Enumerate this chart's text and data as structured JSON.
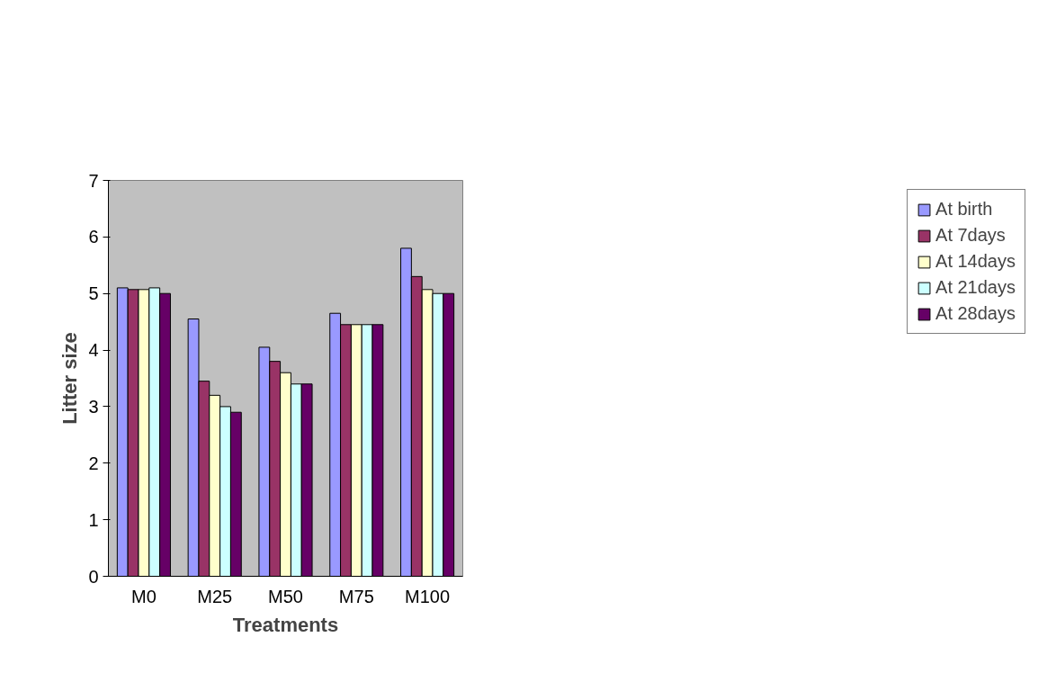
{
  "chart_data": {
    "type": "bar",
    "xlabel": "Treatments",
    "ylabel": "Litter size",
    "categories": [
      "M0",
      "M25",
      "M50",
      "M75",
      "M100"
    ],
    "series": [
      {
        "name": "At birth",
        "color": "#9999ff",
        "values": [
          5.1,
          4.55,
          4.05,
          4.65,
          5.8
        ]
      },
      {
        "name": "At 7days",
        "color": "#993366",
        "values": [
          5.07,
          3.45,
          3.8,
          4.45,
          5.3
        ]
      },
      {
        "name": "At 14days",
        "color": "#ffffcc",
        "values": [
          5.07,
          3.2,
          3.6,
          4.45,
          5.07
        ]
      },
      {
        "name": "At 21days",
        "color": "#ccffff",
        "values": [
          5.1,
          3.0,
          3.4,
          4.45,
          5.0
        ]
      },
      {
        "name": "At 28days",
        "color": "#660066",
        "values": [
          5.0,
          2.9,
          3.4,
          4.45,
          5.0
        ]
      }
    ],
    "ylim": [
      0,
      7
    ],
    "yticks": [
      0,
      1,
      2,
      3,
      4,
      5,
      6,
      7
    ],
    "grid": false,
    "legend": "right"
  }
}
